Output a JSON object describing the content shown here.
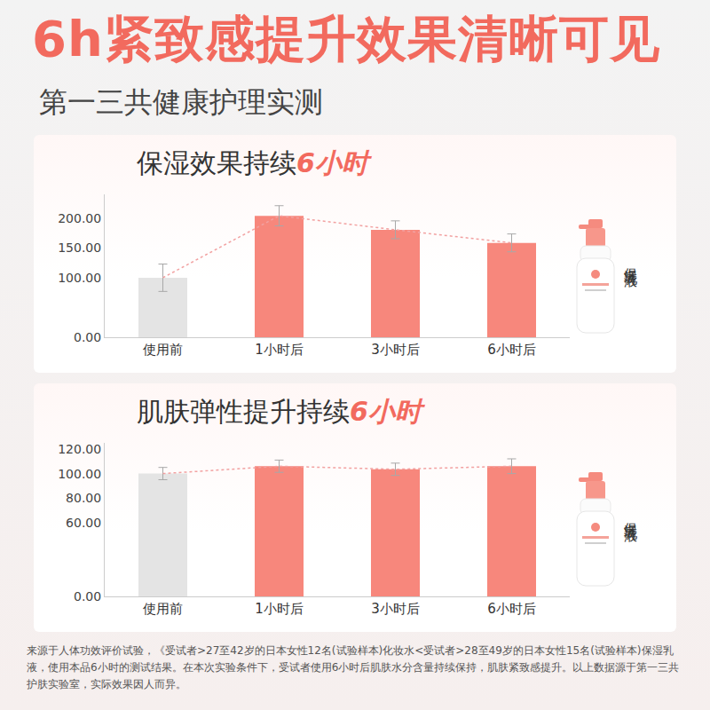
{
  "header": {
    "title": "6h紧致感提升效果清晰可见",
    "subtitle": "第一三共健康护理实测"
  },
  "product_label": "保湿乳液",
  "footnote": "来源于人体功效评价试验，《受试者>27至42岁的日本女性12名(试验样本)化妆水<受试者>28至49岁的日本女性15名(试验样本)保湿乳液，使用本品6小时的测试结果。在本次实验条件下，受试者使用6小时后肌肤水分含量持续保持，肌肤紧致感提升。以上数据源于第一三共护肤实验室，实际效果因人而异。",
  "chart_data": [
    {
      "type": "bar",
      "title": "保湿效果持续6小时",
      "categories": [
        "使用前",
        "1小时后",
        "3小时后",
        "6小时后"
      ],
      "values": [
        100,
        204,
        180.5,
        158.5
      ],
      "error": [
        23,
        17,
        15,
        15
      ],
      "colors": [
        "#e4e4e4",
        "#f7877c",
        "#f7877c",
        "#f7877c"
      ],
      "ylim": [
        0,
        240
      ],
      "yticks": [
        {
          "value": 0,
          "label": "0.00"
        },
        {
          "value": 100,
          "label": "100.00"
        },
        {
          "value": 150,
          "label": "150.00"
        },
        {
          "value": 200,
          "label": "200.00"
        }
      ],
      "grid": false
    },
    {
      "type": "bar",
      "title": "肌肤弹性提升持续6小时",
      "categories": [
        "使用前",
        "1小时后",
        "3小时后",
        "6小时后"
      ],
      "values": [
        100,
        106,
        103.5,
        106
      ],
      "error": [
        5,
        5,
        5,
        6
      ],
      "colors": [
        "#e4e4e4",
        "#f7877c",
        "#f7877c",
        "#f7877c"
      ],
      "ylim": [
        0,
        125
      ],
      "yticks": [
        {
          "value": 0,
          "label": "0.00"
        },
        {
          "value": 60,
          "label": "60.00"
        },
        {
          "value": 80,
          "label": "80.00"
        },
        {
          "value": 100,
          "label": "100.00"
        },
        {
          "value": 120,
          "label": "120.00"
        }
      ],
      "grid": false
    }
  ]
}
